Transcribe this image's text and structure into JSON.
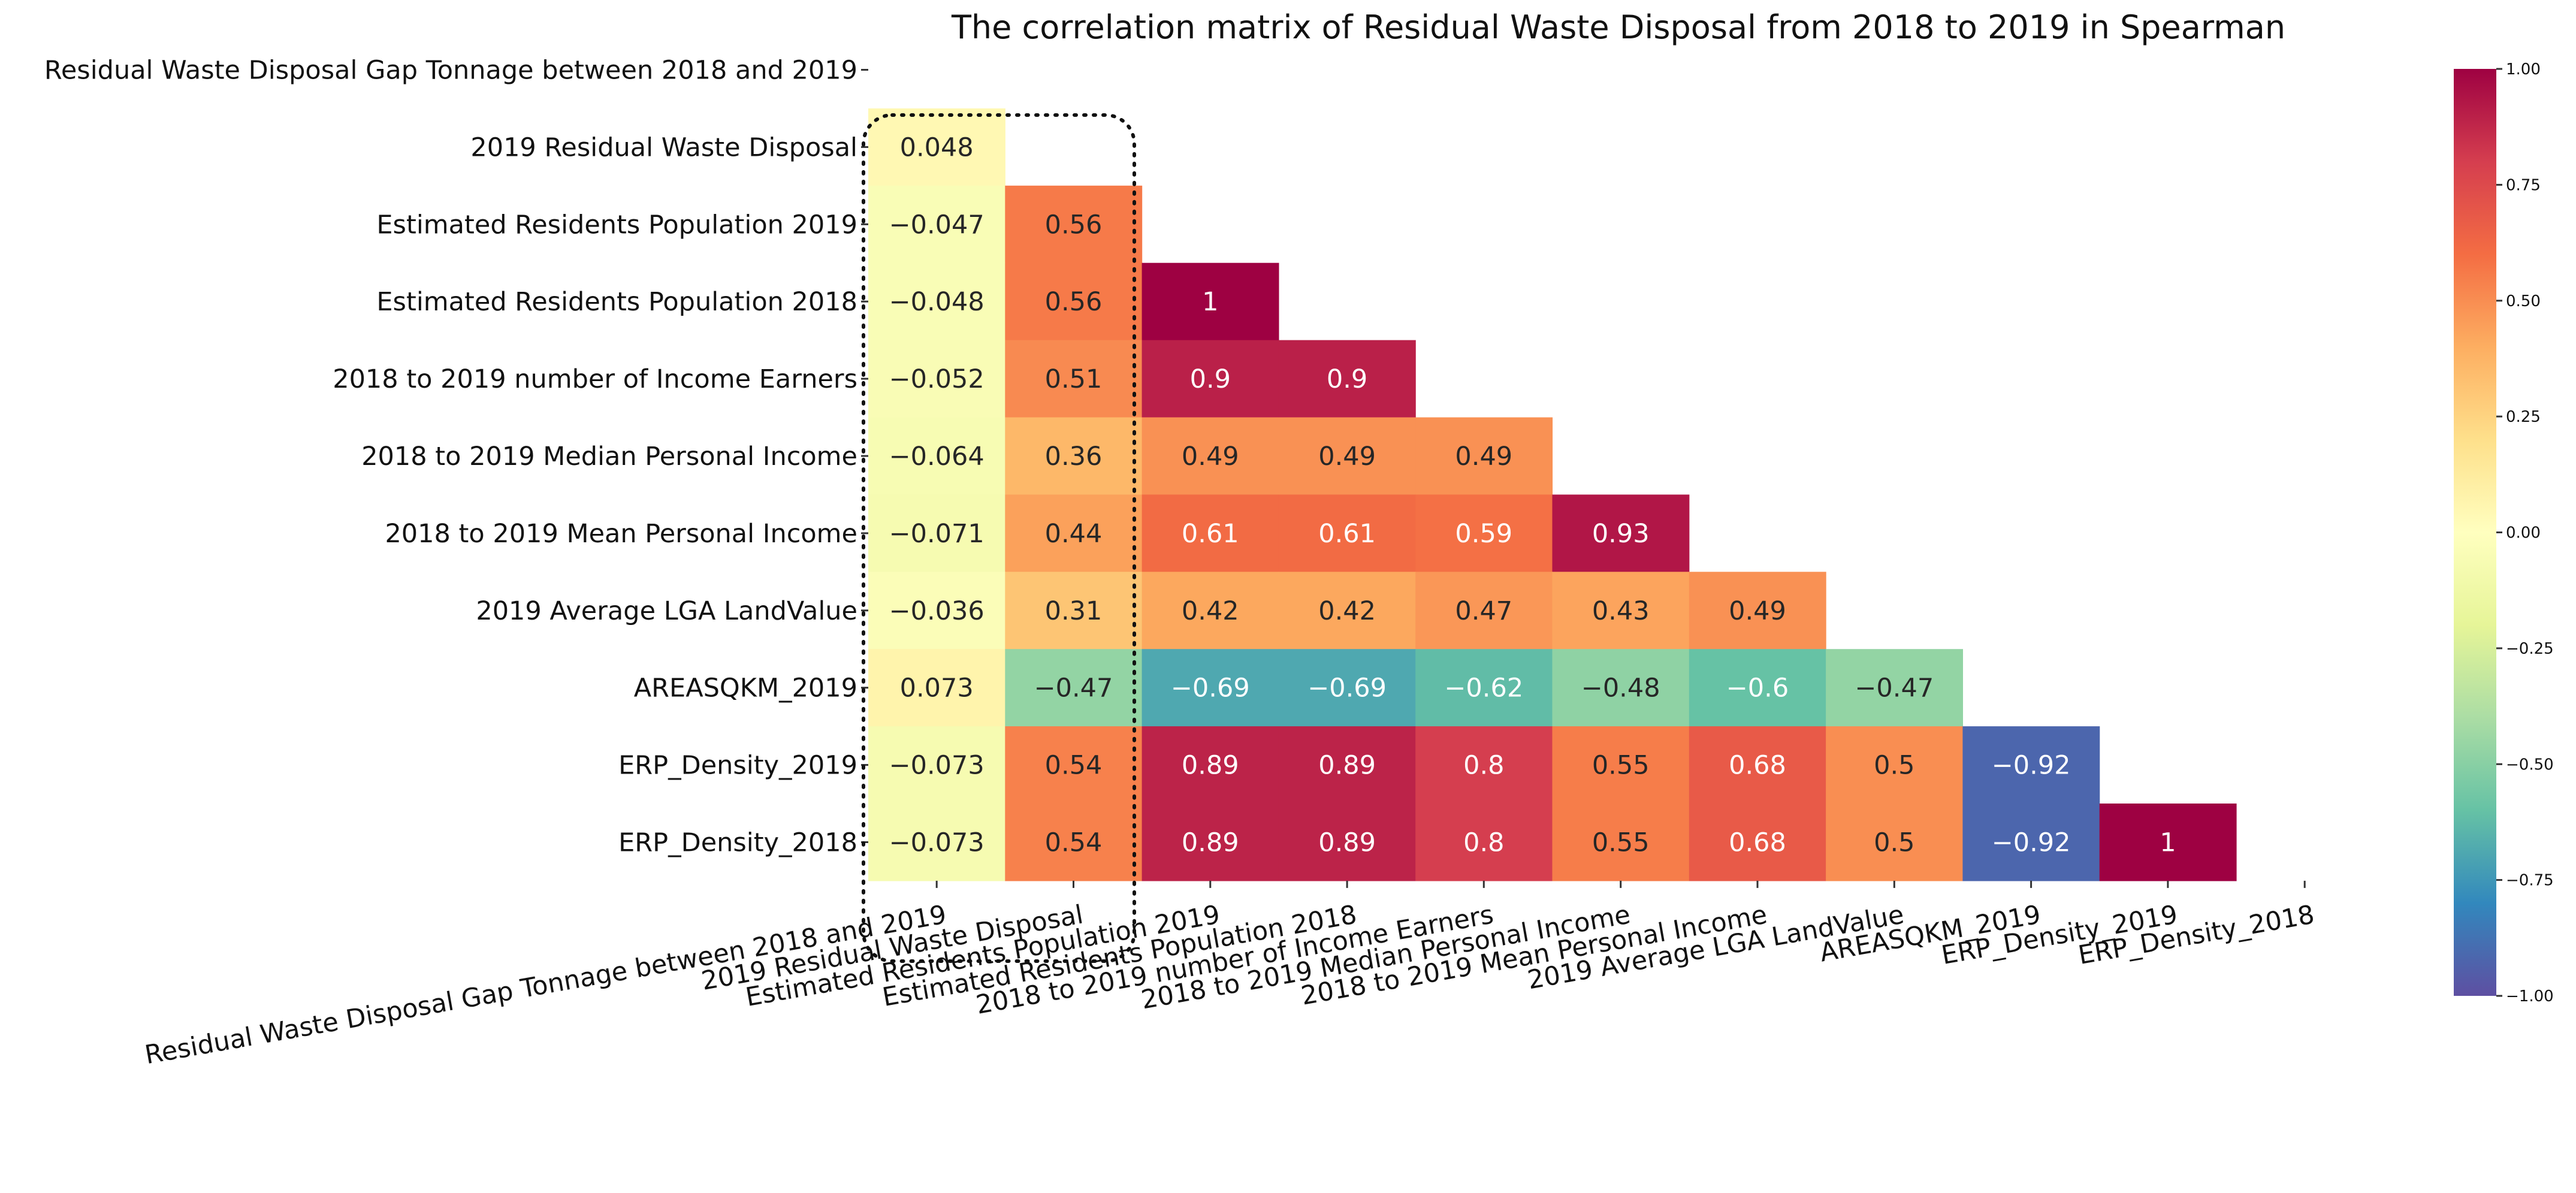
{
  "chart_data": {
    "type": "heatmap",
    "title": "The correlation matrix of Residual Waste Disposal from 2018 to 2019 in Spearman",
    "mask": "upper-triangle",
    "cmap": "Spectral_r",
    "labels": [
      "Residual Waste Disposal Gap Tonnage between 2018 and 2019",
      "2019 Residual Waste Disposal",
      "Estimated Residents Population 2019",
      "Estimated Residents Population 2018",
      "2018 to 2019 number of Income Earners",
      "2018 to 2019 Median Personal Income",
      "2018 to 2019 Mean Personal Income",
      "2019 Average LGA LandValue",
      "AREASQKM_2019",
      "ERP_Density_2019",
      "ERP_Density_2018"
    ],
    "rows": [
      [],
      [
        0.048
      ],
      [
        -0.047,
        0.56
      ],
      [
        -0.048,
        0.56,
        1
      ],
      [
        -0.052,
        0.51,
        0.9,
        0.9
      ],
      [
        -0.064,
        0.36,
        0.49,
        0.49,
        0.49
      ],
      [
        -0.071,
        0.44,
        0.61,
        0.61,
        0.59,
        0.93
      ],
      [
        -0.036,
        0.31,
        0.42,
        0.42,
        0.47,
        0.43,
        0.49
      ],
      [
        0.073,
        -0.47,
        -0.69,
        -0.69,
        -0.62,
        -0.48,
        -0.6,
        -0.47
      ],
      [
        -0.073,
        0.54,
        0.89,
        0.89,
        0.8,
        0.55,
        0.68,
        0.5,
        -0.92
      ],
      [
        -0.073,
        0.54,
        0.89,
        0.89,
        0.8,
        0.55,
        0.68,
        0.5,
        -0.92,
        1
      ]
    ],
    "cell_labels": [
      [],
      [
        "0.048"
      ],
      [
        "−0.047",
        "0.56"
      ],
      [
        "−0.048",
        "0.56",
        "1"
      ],
      [
        "−0.052",
        "0.51",
        "0.9",
        "0.9"
      ],
      [
        "−0.064",
        "0.36",
        "0.49",
        "0.49",
        "0.49"
      ],
      [
        "−0.071",
        "0.44",
        "0.61",
        "0.61",
        "0.59",
        "0.93"
      ],
      [
        "−0.036",
        "0.31",
        "0.42",
        "0.42",
        "0.47",
        "0.43",
        "0.49"
      ],
      [
        "0.073",
        "−0.47",
        "−0.69",
        "−0.69",
        "−0.62",
        "−0.48",
        "−0.6",
        "−0.47"
      ],
      [
        "−0.073",
        "0.54",
        "0.89",
        "0.89",
        "0.8",
        "0.55",
        "0.68",
        "0.5",
        "−0.92"
      ],
      [
        "−0.073",
        "0.54",
        "0.89",
        "0.89",
        "0.8",
        "0.55",
        "0.68",
        "0.5",
        "−0.92",
        "1"
      ]
    ],
    "colorbar": {
      "range": [
        -1,
        1
      ],
      "ticks": [
        1,
        0.75,
        0.5,
        0.25,
        0,
        -0.25,
        -0.5,
        -0.75,
        -1
      ],
      "tick_labels": [
        "1.00",
        "0.75",
        "0.50",
        "0.25",
        "0.00",
        "−0.25",
        "−0.50",
        "−0.75",
        "−1.00"
      ]
    },
    "highlight": {
      "style": "dotted-rounded-rect",
      "column": 0
    }
  }
}
